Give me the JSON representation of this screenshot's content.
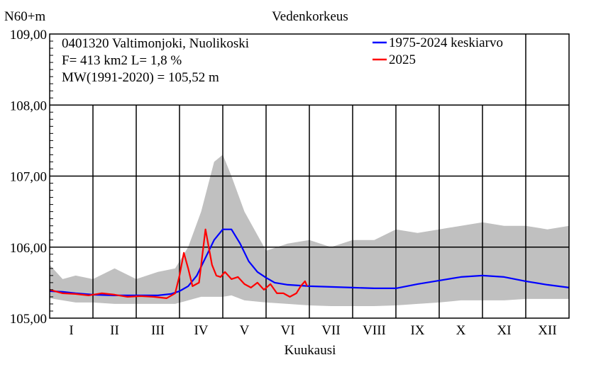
{
  "chart_data": {
    "type": "line",
    "title": "Vedenkorkeus",
    "ylabel": "N60+m",
    "xlabel": "Kuukausi",
    "ylim": [
      105.0,
      109.0
    ],
    "xlim": [
      0,
      12
    ],
    "grid": true,
    "y_ticks": [
      "105,00",
      "106,00",
      "107,00",
      "108,00",
      "109,00"
    ],
    "x_categories": [
      "I",
      "II",
      "III",
      "IV",
      "V",
      "VI",
      "VII",
      "VIII",
      "IX",
      "X",
      "XI",
      "XII"
    ],
    "info_lines": [
      "0401320 Valtimonjoki, Nuolikoski",
      "F=    413 km2 L=  1,8 %",
      "MW(1991-2020) = 105,52 m"
    ],
    "legend_position": "top-right",
    "band": {
      "color": "#c0c0c0",
      "x": [
        0.0,
        0.3,
        0.6,
        1.0,
        1.5,
        2.0,
        2.5,
        2.9,
        3.2,
        3.5,
        3.8,
        4.0,
        4.2,
        4.5,
        5.0,
        5.5,
        6.0,
        6.5,
        7.0,
        7.5,
        8.0,
        8.5,
        9.0,
        9.5,
        10.0,
        10.5,
        11.0,
        11.5,
        12.0
      ],
      "upper": [
        105.75,
        105.55,
        105.6,
        105.55,
        105.7,
        105.55,
        105.65,
        105.7,
        106.0,
        106.5,
        107.2,
        107.3,
        107.0,
        106.5,
        105.95,
        106.05,
        106.1,
        106.0,
        106.1,
        106.1,
        106.25,
        106.2,
        106.25,
        106.3,
        106.35,
        106.3,
        106.3,
        106.25,
        106.3
      ],
      "lower": [
        105.28,
        105.25,
        105.22,
        105.22,
        105.2,
        105.2,
        105.2,
        105.2,
        105.25,
        105.3,
        105.3,
        105.3,
        105.32,
        105.25,
        105.22,
        105.2,
        105.18,
        105.17,
        105.17,
        105.17,
        105.18,
        105.2,
        105.22,
        105.25,
        105.25,
        105.25,
        105.27,
        105.27,
        105.27
      ]
    },
    "series": [
      {
        "name": "1975-2024 keskiarvo",
        "color": "#0000ff",
        "x": [
          0.0,
          0.3,
          0.6,
          1.0,
          1.5,
          2.0,
          2.5,
          2.8,
          3.0,
          3.2,
          3.4,
          3.6,
          3.8,
          4.0,
          4.2,
          4.4,
          4.6,
          4.8,
          5.0,
          5.2,
          5.5,
          6.0,
          6.5,
          7.0,
          7.5,
          8.0,
          8.5,
          9.0,
          9.5,
          10.0,
          10.5,
          11.0,
          11.5,
          12.0
        ],
        "y": [
          105.38,
          105.37,
          105.35,
          105.33,
          105.32,
          105.32,
          105.32,
          105.34,
          105.38,
          105.45,
          105.6,
          105.85,
          106.1,
          106.25,
          106.25,
          106.05,
          105.8,
          105.65,
          105.57,
          105.5,
          105.47,
          105.45,
          105.44,
          105.43,
          105.42,
          105.42,
          105.48,
          105.53,
          105.58,
          105.6,
          105.58,
          105.52,
          105.47,
          105.43
        ]
      },
      {
        "name": "2025",
        "color": "#ff0000",
        "x": [
          0.0,
          0.3,
          0.6,
          0.9,
          1.2,
          1.5,
          1.8,
          2.1,
          2.4,
          2.7,
          2.9,
          3.0,
          3.1,
          3.2,
          3.3,
          3.45,
          3.6,
          3.75,
          3.85,
          3.95,
          4.05,
          4.2,
          4.35,
          4.5,
          4.65,
          4.8,
          4.95,
          5.1,
          5.25,
          5.4,
          5.55,
          5.7,
          5.8,
          5.9,
          5.95
        ],
        "y": [
          105.4,
          105.35,
          105.34,
          105.32,
          105.35,
          105.33,
          105.3,
          105.31,
          105.3,
          105.28,
          105.35,
          105.6,
          105.92,
          105.7,
          105.45,
          105.5,
          106.25,
          105.75,
          105.6,
          105.58,
          105.65,
          105.55,
          105.58,
          105.48,
          105.43,
          105.5,
          105.4,
          105.48,
          105.35,
          105.35,
          105.3,
          105.35,
          105.45,
          105.52,
          105.45
        ]
      }
    ]
  }
}
